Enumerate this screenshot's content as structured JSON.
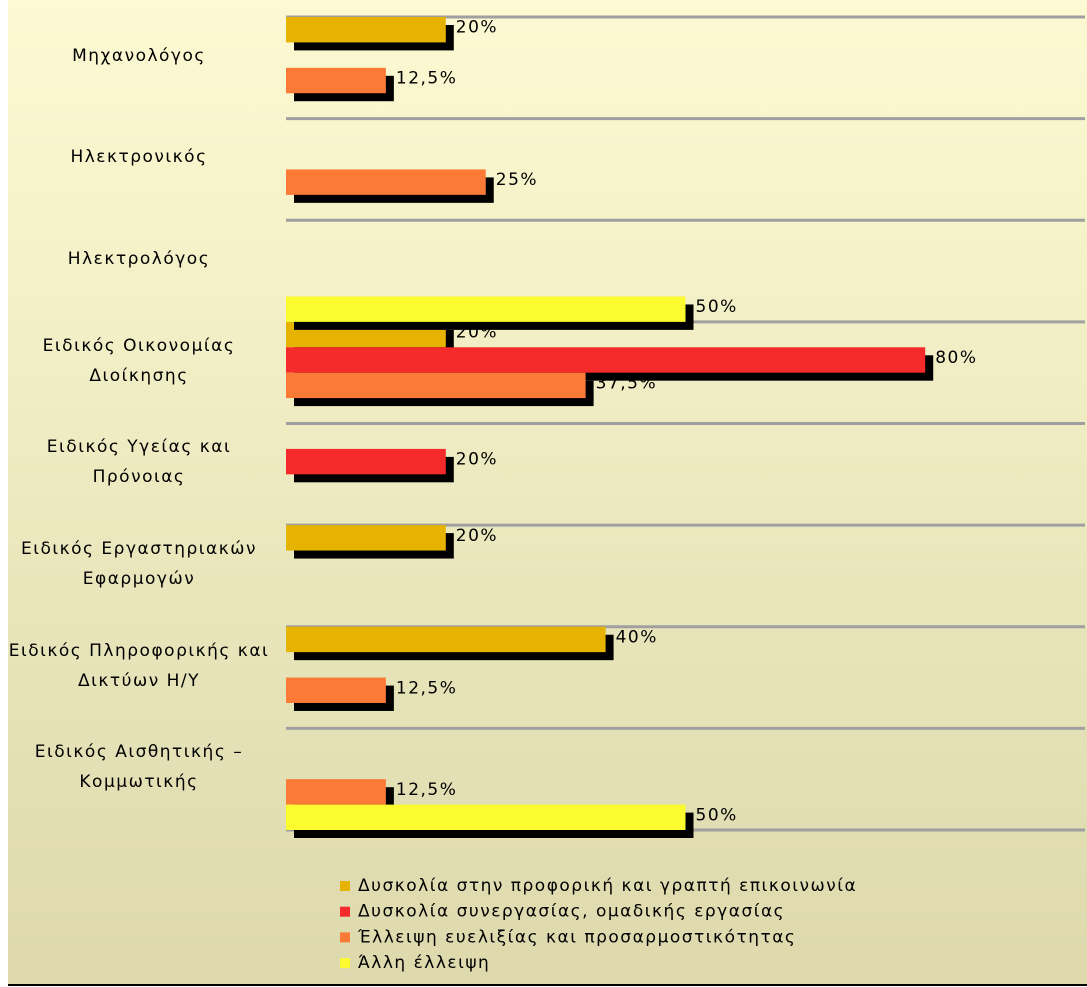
{
  "chart_data": {
    "type": "bar",
    "orientation": "horizontal",
    "categories": [
      "Μηχανολόγος",
      "Ηλεκτρονικός",
      "Ηλεκτρολόγος",
      "Ειδικός Οικονομίας Διοίκησης",
      "Ειδικός Υγείας και Πρόνοιας",
      "Ειδικός Εργαστηριακών Εφαρμογών",
      "Ειδικός Πληροφορικής και Δικτύων Η/Υ",
      "Ειδικός Αισθητικής – Κομμωτικής"
    ],
    "series": [
      {
        "name": "Δυσκολία στην προφορική και γραπτή επικοινωνία",
        "color": "#e6b400",
        "values": [
          20,
          null,
          null,
          20,
          null,
          20,
          40,
          null
        ],
        "value_labels": [
          "20%",
          null,
          null,
          "20%",
          null,
          "20%",
          "40%",
          null
        ]
      },
      {
        "name": "Δυσκολία συνεργασίας, ομαδικής εργασίας",
        "color": "#f52a2a",
        "values": [
          null,
          null,
          null,
          80,
          20,
          null,
          null,
          null
        ],
        "value_labels": [
          null,
          null,
          null,
          "80%",
          "20%",
          null,
          null,
          null
        ]
      },
      {
        "name": "Έλλειψη ευελιξίας και προσαρμοστικότητας",
        "color": "#fb7a35",
        "values": [
          12.5,
          25,
          null,
          37.5,
          null,
          null,
          12.5,
          12.5
        ],
        "value_labels": [
          "12,5%",
          "25%",
          null,
          "37,5%",
          null,
          null,
          "12,5%",
          "12,5%"
        ]
      },
      {
        "name": "Άλλη έλλειψη",
        "color": "#fbfb30",
        "values": [
          null,
          null,
          50,
          null,
          null,
          null,
          null,
          50
        ],
        "value_labels": [
          null,
          null,
          "50%",
          null,
          null,
          null,
          null,
          "50%"
        ]
      }
    ],
    "xlim": [
      0,
      100
    ],
    "legend": "bottom"
  }
}
